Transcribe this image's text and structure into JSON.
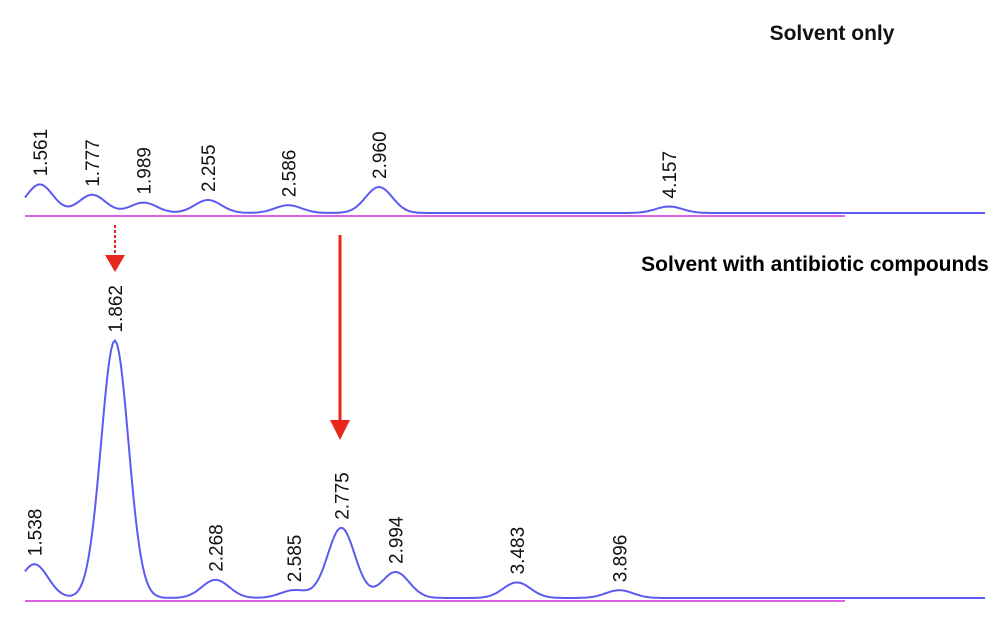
{
  "chart_data": [
    {
      "type": "chromatogram",
      "title": "Solvent only",
      "x": [
        1.561,
        1.777,
        1.989,
        2.255,
        2.586,
        2.96,
        4.157
      ],
      "value_labels": [
        "1.561",
        "1.777",
        "1.989",
        "2.255",
        "2.586",
        "2.960",
        "4.157"
      ],
      "values": [
        11,
        7,
        4,
        5,
        3,
        10,
        2.5
      ],
      "xlim": [
        1.5,
        5.46
      ],
      "ylim": [
        0,
        100
      ],
      "color": "#5b5bf0"
    },
    {
      "type": "chromatogram",
      "title": "Solvent with antibiotic compounds",
      "x": [
        1.538,
        1.862,
        2.268,
        2.585,
        2.775,
        2.994,
        3.483,
        3.896
      ],
      "value_labels": [
        "1.538",
        "1.862",
        "2.268",
        "2.585",
        "2.775",
        "2.994",
        "3.483",
        "3.896"
      ],
      "values": [
        13,
        99,
        7,
        3,
        27,
        10,
        6,
        3
      ],
      "xlim": [
        1.5,
        5.37
      ],
      "ylim": [
        0,
        100
      ],
      "color": "#5b5bf0"
    }
  ]
}
